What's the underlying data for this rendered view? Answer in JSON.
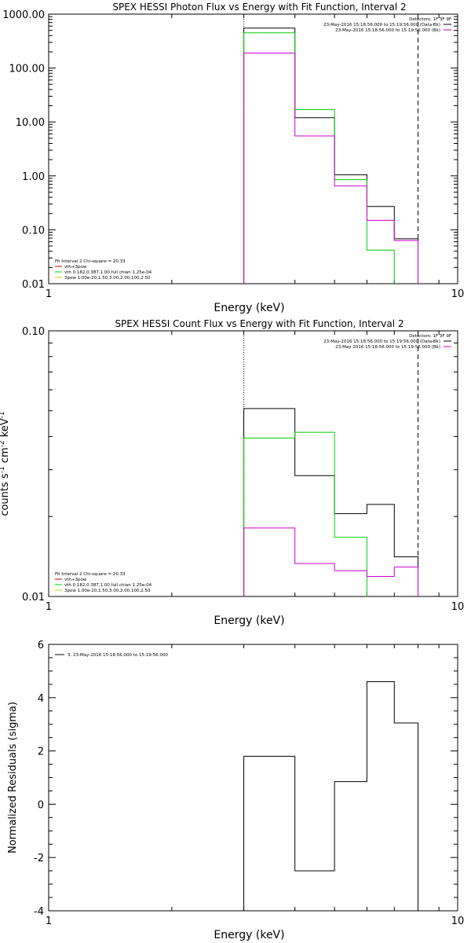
{
  "colors": {
    "black": "#000000",
    "green": "#00cc00",
    "magenta": "#cc00cc",
    "red": "#cc0000",
    "yellow": "#cccc00"
  },
  "chart_data": [
    {
      "type": "line",
      "step": true,
      "title": "SPEX HESSI Photon Flux vs Energy with Fit Function, Interval 2",
      "xlabel": "Energy (keV)",
      "ylabel": "",
      "xscale": "log",
      "yscale": "log",
      "xlim": [
        1,
        10
      ],
      "ylim": [
        0.01,
        1000
      ],
      "xticks": [
        "1",
        "10"
      ],
      "yticks": [
        "0.01",
        "0.10",
        "1.00",
        "10.00",
        "100.00",
        "1000.00"
      ],
      "bin_edges": [
        3,
        4,
        5,
        6,
        7,
        8
      ],
      "lines": {
        "dotted_x": 3,
        "dashed_x": 8
      },
      "series": [
        {
          "color": "black",
          "values": [
            550,
            12,
            1.05,
            0.27,
            0.068
          ]
        },
        {
          "color": "green",
          "values": [
            450,
            17,
            0.85,
            0.042,
            0.0085
          ]
        },
        {
          "color": "magenta",
          "values": [
            190,
            5.5,
            0.65,
            0.15,
            0.063
          ]
        }
      ],
      "legend_top": {
        "header": "Detectors: 1F 3F 9F",
        "entries": [
          {
            "text": "23-May-2016 15:18:56.000 to 15:19:56.000 (Data-Bk)",
            "color": "black"
          },
          {
            "text": "23-May-2016 15:18:56.000 to 15:19:56.000 (Bk)",
            "color": "magenta"
          }
        ]
      },
      "legend_bottom": {
        "header": "Fit Interval 2   Chi-square = 20.33",
        "entries": [
          {
            "text": "vth+3pow",
            "color": "red"
          },
          {
            "text": "vth 0.182,0.387,1.00  full chian 1.25e-04",
            "color": "green"
          },
          {
            "text": "3pow 1.00e-20,1.50,3.00,2.00,100,2.50",
            "color": "yellow"
          }
        ]
      }
    },
    {
      "type": "line",
      "step": true,
      "title": "SPEX HESSI Count Flux vs Energy with Fit Function, Interval 2",
      "xlabel": "Energy (keV)",
      "ylabel": "counts s^-1 cm^-2 keV^-1",
      "ylabel_parts": {
        "counts": "counts s",
        "e1": "-1",
        "cm": " cm",
        "e2": "-2",
        "kev": " keV",
        "e3": "-1"
      },
      "xscale": "log",
      "yscale": "log",
      "xlim": [
        1,
        10
      ],
      "ylim": [
        0.01,
        0.1
      ],
      "xticks": [
        "1",
        "10"
      ],
      "yticks": [
        "0.01",
        "0.10"
      ],
      "bin_edges": [
        3,
        4,
        5,
        6,
        7,
        8
      ],
      "lines": {
        "dotted_x": 3,
        "dashed_x": 8
      },
      "series": [
        {
          "color": "black",
          "values": [
            0.051,
            0.0285,
            0.0205,
            0.0222,
            0.0141
          ]
        },
        {
          "color": "green",
          "values": [
            0.0395,
            0.0415,
            0.0167,
            0.0092,
            0.0092
          ]
        },
        {
          "color": "magenta",
          "values": [
            0.0181,
            0.0133,
            0.0125,
            0.0119,
            0.0129
          ]
        }
      ],
      "legend_top": {
        "header": "Detectors: 1F 3F 9F",
        "entries": [
          {
            "text": "23-May-2016 15:18:56.000 to 15:19:56.000 (Data-Bk)",
            "color": "black"
          },
          {
            "text": "23-May-2016 15:18:56.000 to 15:19:56.000 (Bk)",
            "color": "magenta"
          }
        ]
      },
      "legend_bottom": {
        "header": "Fit Interval 2   Chi-square = 20.33",
        "entries": [
          {
            "text": "vth+3pow",
            "color": "red"
          },
          {
            "text": "vth 0.182,0.387,1.00  full chian 1.25e-04",
            "color": "green"
          },
          {
            "text": "3pow 1.00e-20,1.50,3.00,2.00,100,2.50",
            "color": "yellow"
          }
        ]
      }
    },
    {
      "type": "line",
      "step": true,
      "title": "",
      "xlabel": "Energy (keV)",
      "ylabel": "Normalized Residuals (sigma)",
      "xscale": "log",
      "yscale": "linear",
      "xlim": [
        1,
        10
      ],
      "ylim": [
        -4,
        6
      ],
      "xticks": [
        "1",
        "10"
      ],
      "yticks": [
        "-4",
        "-2",
        "0",
        "2",
        "4",
        "6"
      ],
      "bin_edges": [
        3,
        4,
        5,
        6,
        7,
        8
      ],
      "series": [
        {
          "color": "black",
          "values": [
            1.8,
            -2.5,
            0.85,
            4.6,
            3.05
          ]
        }
      ],
      "legend_top": {
        "entries": [
          {
            "text": "3. 23-May-2016 15:18:56.000 to 15:19:56.000",
            "color": "black"
          }
        ]
      }
    }
  ]
}
